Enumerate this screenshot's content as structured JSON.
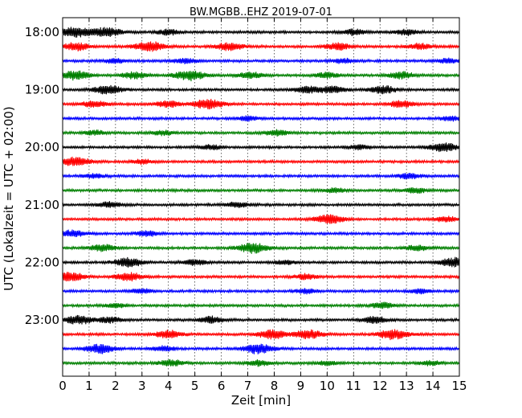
{
  "chart_data": {
    "type": "line",
    "title": "BW.MGBB..EHZ 2019-07-01",
    "xlabel": "Zeit  [min]",
    "ylabel": "UTC (Lokalzeit = UTC + 02:00)",
    "xlim": [
      0,
      15
    ],
    "x_ticks": [
      0,
      1,
      2,
      3,
      4,
      5,
      6,
      7,
      8,
      9,
      10,
      11,
      12,
      13,
      14,
      15
    ],
    "y_tick_labels": [
      "18:00",
      "19:00",
      "20:00",
      "21:00",
      "22:00",
      "23:00"
    ],
    "grid": true,
    "line_colors": [
      "#000000",
      "#ff0000",
      "#0000ff",
      "#008000"
    ],
    "traces": [
      {
        "start": "18:00",
        "bursts": [
          [
            0.5,
            0.9
          ],
          [
            1.7,
            0.8
          ],
          [
            4.0,
            0.5
          ],
          [
            11.0,
            0.5
          ],
          [
            13.0,
            0.5
          ]
        ]
      },
      {
        "start": "18:15",
        "bursts": [
          [
            0.5,
            0.7
          ],
          [
            3.3,
            0.9
          ],
          [
            6.3,
            0.7
          ],
          [
            10.4,
            0.6
          ],
          [
            13.5,
            0.5
          ]
        ]
      },
      {
        "start": "18:30",
        "bursts": [
          [
            2.0,
            0.4
          ],
          [
            4.6,
            0.5
          ],
          [
            10.6,
            0.4
          ],
          [
            14.6,
            0.4
          ]
        ]
      },
      {
        "start": "18:45",
        "bursts": [
          [
            0.5,
            0.8
          ],
          [
            2.7,
            0.6
          ],
          [
            4.8,
            0.9
          ],
          [
            7.1,
            0.6
          ],
          [
            10.0,
            0.5
          ],
          [
            12.8,
            0.6
          ]
        ]
      },
      {
        "start": "19:00",
        "bursts": [
          [
            1.7,
            0.8
          ],
          [
            9.2,
            0.6
          ],
          [
            10.2,
            0.6
          ],
          [
            12.1,
            0.7
          ]
        ]
      },
      {
        "start": "19:15",
        "bursts": [
          [
            1.2,
            0.6
          ],
          [
            4.0,
            0.6
          ],
          [
            5.5,
            0.9
          ],
          [
            12.8,
            0.6
          ]
        ]
      },
      {
        "start": "19:30",
        "bursts": [
          [
            7.0,
            0.4
          ],
          [
            14.7,
            0.4
          ]
        ]
      },
      {
        "start": "19:45",
        "bursts": [
          [
            1.2,
            0.4
          ],
          [
            3.8,
            0.4
          ],
          [
            8.1,
            0.5
          ]
        ]
      },
      {
        "start": "20:00",
        "bursts": [
          [
            5.6,
            0.4
          ],
          [
            11.2,
            0.4
          ],
          [
            14.4,
            0.8
          ]
        ]
      },
      {
        "start": "20:15",
        "bursts": [
          [
            0.5,
            0.8
          ],
          [
            3.0,
            0.4
          ]
        ]
      },
      {
        "start": "20:30",
        "bursts": [
          [
            1.2,
            0.4
          ],
          [
            13.1,
            0.5
          ]
        ]
      },
      {
        "start": "20:45",
        "bursts": [
          [
            10.3,
            0.4
          ],
          [
            13.3,
            0.5
          ]
        ]
      },
      {
        "start": "21:00",
        "bursts": [
          [
            1.8,
            0.5
          ],
          [
            6.6,
            0.5
          ]
        ]
      },
      {
        "start": "21:15",
        "bursts": [
          [
            10.1,
            0.8
          ],
          [
            14.5,
            0.5
          ]
        ]
      },
      {
        "start": "21:30",
        "bursts": [
          [
            0.4,
            0.6
          ],
          [
            3.2,
            0.5
          ]
        ]
      },
      {
        "start": "21:45",
        "bursts": [
          [
            1.5,
            0.6
          ],
          [
            7.2,
            0.9
          ],
          [
            13.4,
            0.5
          ]
        ]
      },
      {
        "start": "22:00",
        "bursts": [
          [
            2.5,
            0.8
          ],
          [
            5.0,
            0.5
          ],
          [
            8.4,
            0.4
          ],
          [
            14.8,
            0.8
          ]
        ]
      },
      {
        "start": "22:15",
        "bursts": [
          [
            0.3,
            0.8
          ],
          [
            2.5,
            0.7
          ],
          [
            9.2,
            0.5
          ]
        ]
      },
      {
        "start": "22:30",
        "bursts": [
          [
            3.0,
            0.4
          ],
          [
            9.2,
            0.4
          ],
          [
            13.5,
            0.4
          ]
        ]
      },
      {
        "start": "22:45",
        "bursts": [
          [
            2.0,
            0.4
          ],
          [
            12.1,
            0.5
          ]
        ]
      },
      {
        "start": "23:00",
        "bursts": [
          [
            0.6,
            0.8
          ],
          [
            1.8,
            0.5
          ],
          [
            5.6,
            0.6
          ],
          [
            11.8,
            0.6
          ]
        ]
      },
      {
        "start": "23:15",
        "bursts": [
          [
            4.0,
            0.7
          ],
          [
            7.9,
            0.8
          ],
          [
            9.3,
            0.8
          ],
          [
            12.5,
            0.9
          ]
        ]
      },
      {
        "start": "23:30",
        "bursts": [
          [
            1.4,
            0.8
          ],
          [
            3.8,
            0.5
          ],
          [
            7.4,
            0.9
          ]
        ]
      },
      {
        "start": "23:45",
        "bursts": [
          [
            4.1,
            0.6
          ],
          [
            7.4,
            0.5
          ],
          [
            10.0,
            0.4
          ],
          [
            13.9,
            0.4
          ]
        ]
      }
    ]
  }
}
